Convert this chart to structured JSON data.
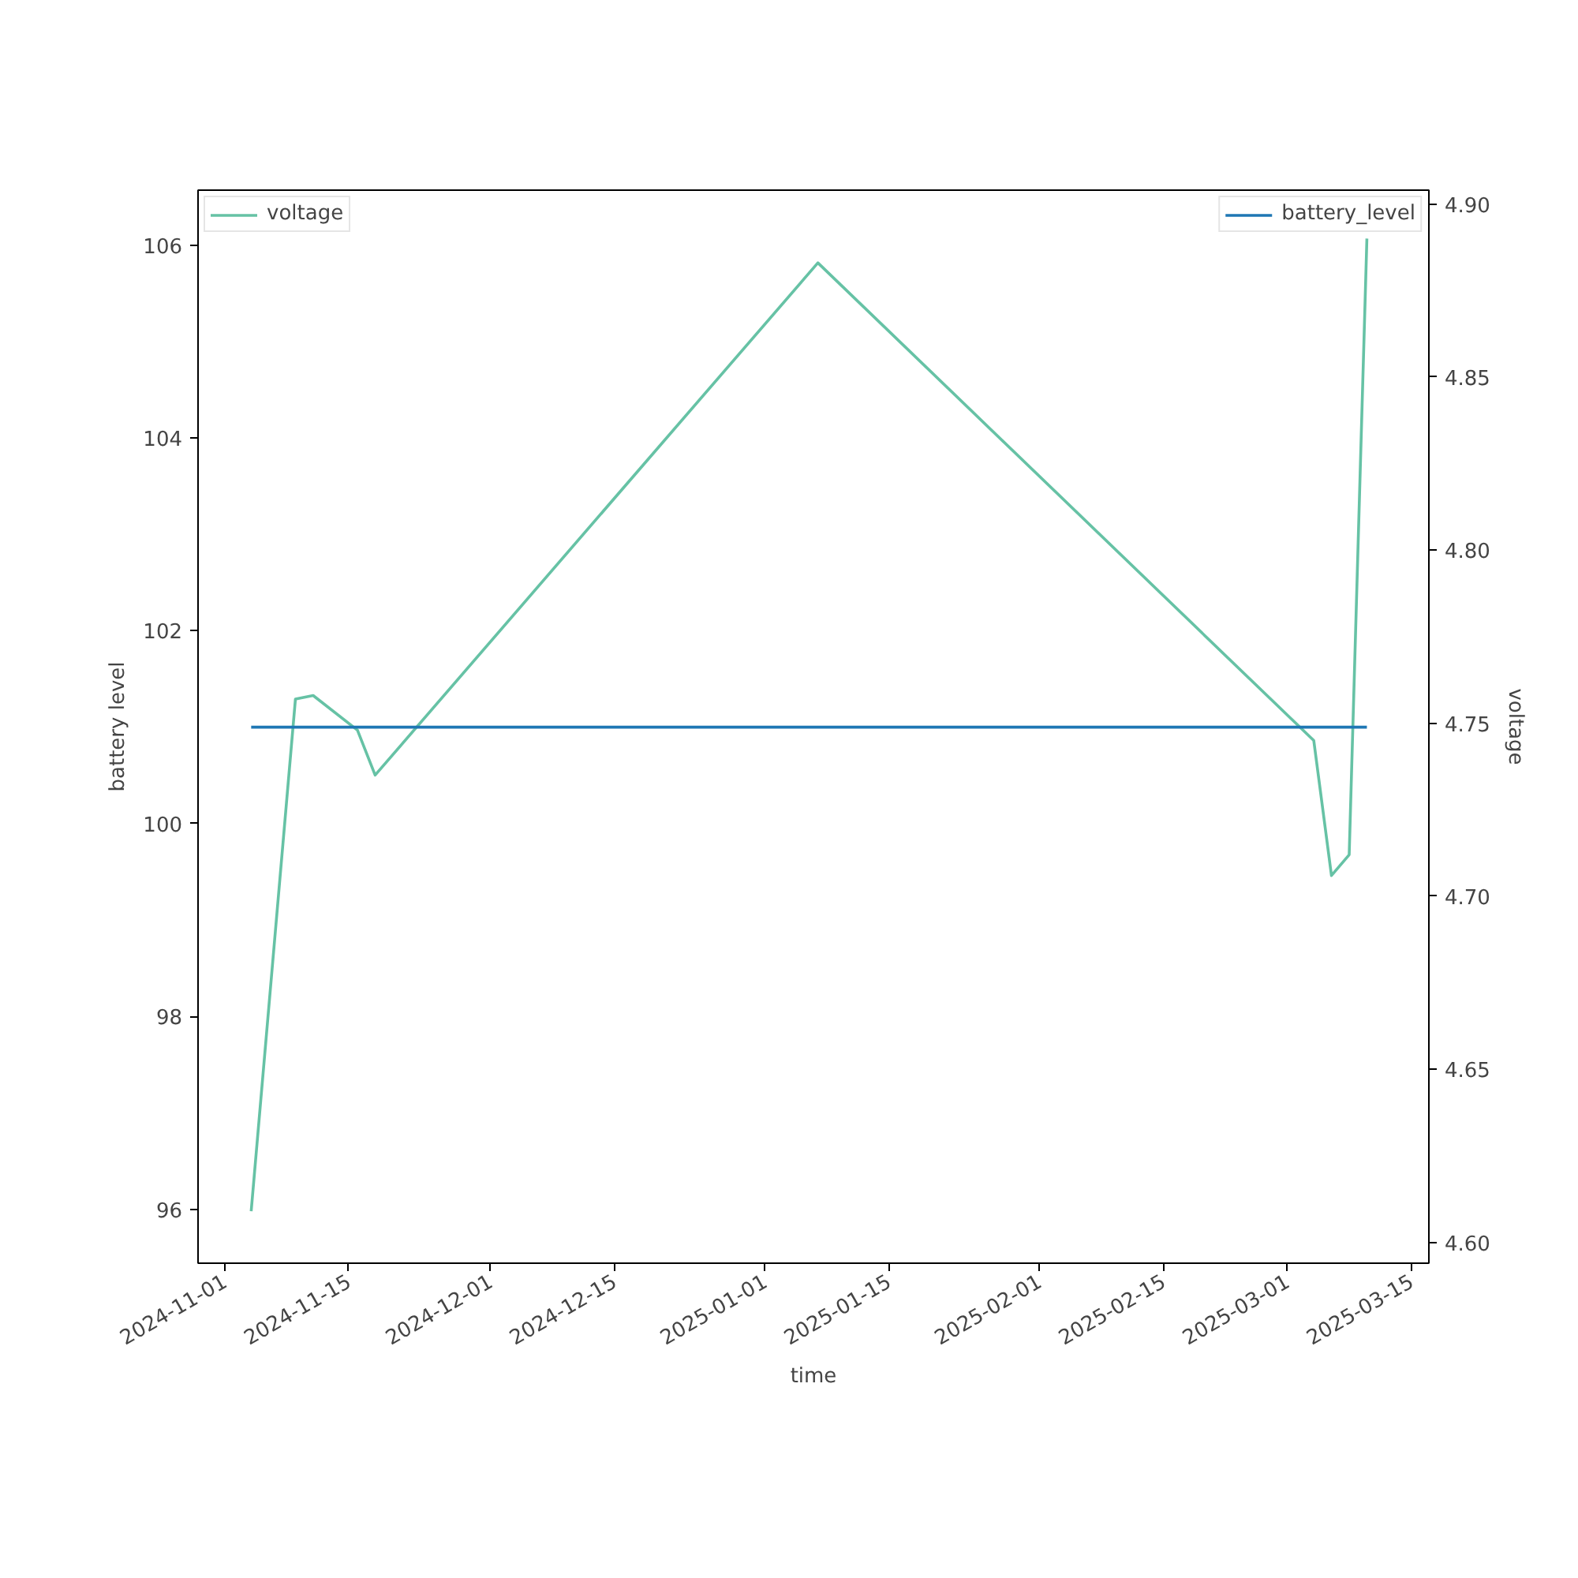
{
  "chart_data": {
    "type": "line",
    "xlabel": "time",
    "ylabel": "battery level",
    "y2label": "voltage",
    "xlim": [
      "2024-10-29",
      "2025-03-17"
    ],
    "xticks": [
      "2024-11-01",
      "2024-11-15",
      "2024-12-01",
      "2024-12-15",
      "2025-01-01",
      "2025-01-15",
      "2025-02-01",
      "2025-02-15",
      "2025-03-01",
      "2025-03-15"
    ],
    "ylim": [
      95.44,
      106.57
    ],
    "yticks": [
      96,
      98,
      100,
      102,
      104,
      106
    ],
    "y2lim": [
      4.594,
      4.904
    ],
    "y2ticks": [
      {
        "value": 4.6,
        "label": "4.60"
      },
      {
        "value": 4.65,
        "label": "4.65"
      },
      {
        "value": 4.7,
        "label": "4.70"
      },
      {
        "value": 4.75,
        "label": "4.75"
      },
      {
        "value": 4.8,
        "label": "4.80"
      },
      {
        "value": 4.85,
        "label": "4.85"
      },
      {
        "value": 4.9,
        "label": "4.90"
      }
    ],
    "legend": "top",
    "grid": false,
    "series": [
      {
        "name": "voltage",
        "color": "#66c2a5",
        "axis": "y2",
        "x": [
          "2024-11-04",
          "2024-11-09",
          "2024-11-11",
          "2024-11-16",
          "2024-11-18",
          "2025-01-07",
          "2025-03-04",
          "2025-03-06",
          "2025-03-08",
          "2025-03-10"
        ],
        "values": [
          4.609,
          4.757,
          4.758,
          4.748,
          4.735,
          4.883,
          4.745,
          4.706,
          4.712,
          4.89
        ]
      },
      {
        "name": "battery_level",
        "color": "#1f77b4",
        "x": [
          "2024-11-04",
          "2025-03-10"
        ],
        "values": [
          101,
          101
        ]
      }
    ]
  }
}
